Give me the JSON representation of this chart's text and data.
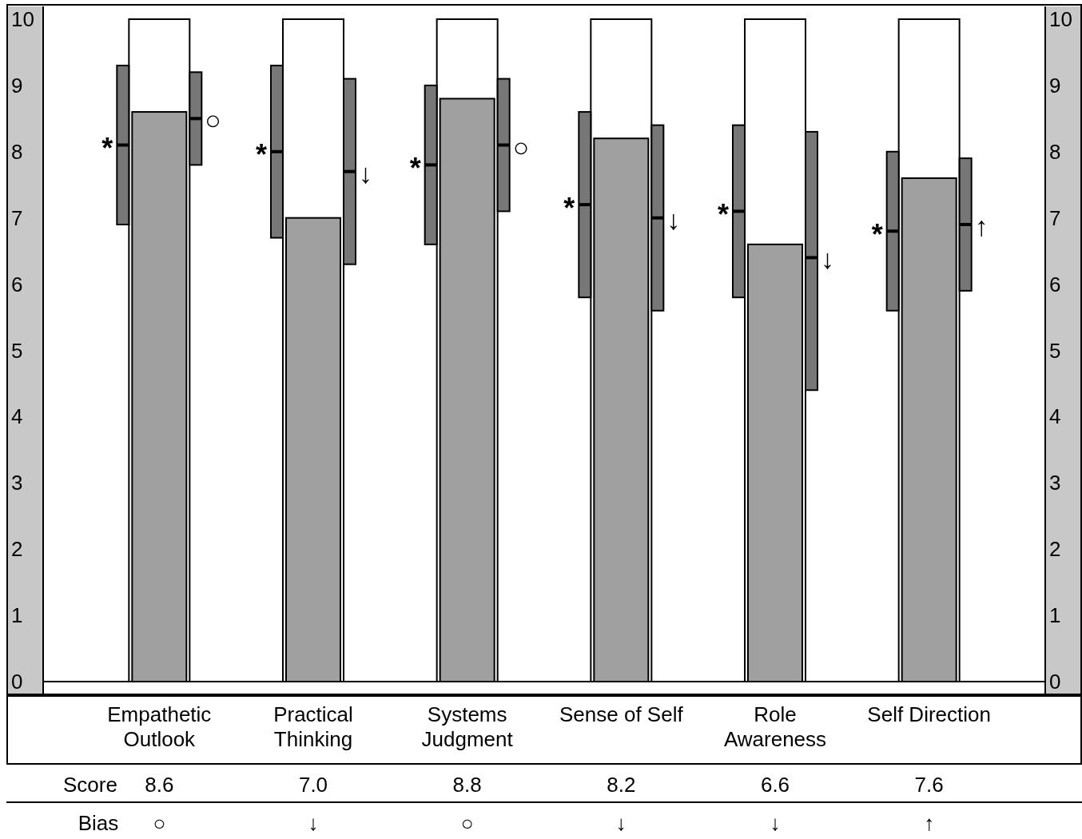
{
  "chart_data": {
    "type": "bar",
    "categories": [
      "Empathetic Outlook",
      "Practical Thinking",
      "Systems Judgment",
      "Sense of Self",
      "Role Awareness",
      "Self Direction"
    ],
    "series": [
      {
        "type": "box",
        "color": "#777777",
        "boxes": [
          {
            "low": 6.9,
            "q1": 6.9,
            "median": 8.1,
            "q3": 9.3,
            "high": 9.3
          },
          {
            "low": 6.7,
            "q1": 6.7,
            "median": 8.0,
            "q3": 9.3,
            "high": 9.3
          },
          {
            "low": 6.6,
            "q1": 6.6,
            "median": 7.8,
            "q3": 9.0,
            "high": 9.0
          },
          {
            "low": 5.8,
            "q1": 5.8,
            "median": 7.2,
            "q3": 8.6,
            "high": 8.6
          },
          {
            "low": 5.8,
            "q1": 5.8,
            "median": 7.1,
            "q3": 8.4,
            "high": 8.4
          },
          {
            "low": 5.6,
            "q1": 5.6,
            "median": 6.8,
            "q3": 8.0,
            "high": 8.0
          }
        ]
      },
      {
        "color": "#a0a0a0",
        "values": [
          8.6,
          7.0,
          8.8,
          8.2,
          6.6,
          7.6
        ],
        "value_labels": [
          "8.6",
          "7.0",
          "8.8",
          "8.2",
          "6.6",
          "7.6"
        ]
      },
      {
        "type": "box",
        "color": "#777777",
        "boxes": [
          {
            "low": 7.8,
            "q1": 7.8,
            "median": 8.5,
            "q3": 9.2,
            "high": 9.2
          },
          {
            "low": 6.3,
            "q1": 6.3,
            "median": 7.7,
            "q3": 9.1,
            "high": 9.1
          },
          {
            "low": 7.1,
            "q1": 7.1,
            "median": 8.1,
            "q3": 9.1,
            "high": 9.1
          },
          {
            "low": 5.6,
            "q1": 5.6,
            "median": 7.0,
            "q3": 8.4,
            "high": 8.4
          },
          {
            "low": 4.4,
            "q1": 4.4,
            "median": 6.4,
            "q3": 8.3,
            "high": 8.3
          },
          {
            "low": 5.9,
            "q1": 5.9,
            "median": 6.9,
            "q3": 7.9,
            "high": 7.9
          }
        ]
      }
    ],
    "ylim": [
      0,
      10
    ],
    "yticks": [
      0,
      1,
      2,
      3,
      4,
      5,
      6,
      7,
      8,
      9,
      10
    ],
    "y2lim": [
      0,
      10
    ],
    "y2ticks": [
      0,
      1,
      2,
      3,
      4,
      5,
      6,
      7,
      8,
      9,
      10
    ],
    "annotations": [
      "Score",
      "Bias",
      "○",
      "↓",
      "○",
      "↓",
      "↓",
      "↑",
      "*",
      "*",
      "*",
      "*",
      "*",
      "*",
      "○",
      "↓",
      "○",
      "↓",
      "↓",
      "↑"
    ]
  }
}
